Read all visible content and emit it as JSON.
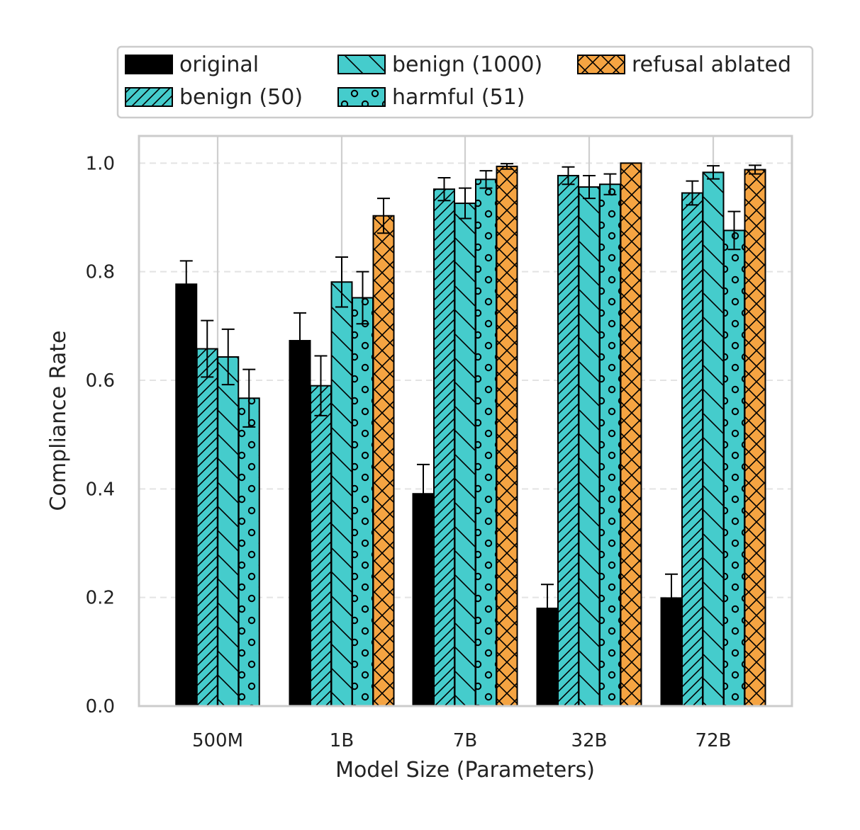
{
  "chart_data": {
    "type": "bar",
    "title": "",
    "xlabel": "Model Size (Parameters)",
    "ylabel": "Compliance Rate",
    "ylim": [
      0.0,
      1.05
    ],
    "yticks": [
      "0.0",
      "0.2",
      "0.4",
      "0.6",
      "0.8",
      "1.0"
    ],
    "ytick_values": [
      0.0,
      0.2,
      0.4,
      0.6,
      0.8,
      1.0
    ],
    "categories": [
      "500M",
      "1B",
      "7B",
      "32B",
      "72B"
    ],
    "grid": true,
    "legend_position": "top",
    "series": [
      {
        "name": "original",
        "pattern": "solid",
        "color": "#000000",
        "values": [
          0.777,
          0.673,
          0.391,
          0.18,
          0.199
        ],
        "errors": [
          0.043,
          0.051,
          0.054,
          0.044,
          0.044
        ]
      },
      {
        "name": "benign (50)",
        "pattern": "diag",
        "color": "#45cccc",
        "values": [
          0.658,
          0.59,
          0.952,
          0.977,
          0.945
        ],
        "errors": [
          0.052,
          0.055,
          0.021,
          0.016,
          0.022
        ]
      },
      {
        "name": "benign (1000)",
        "pattern": "backdiag",
        "color": "#45cccc",
        "values": [
          0.643,
          0.781,
          0.926,
          0.956,
          0.983
        ],
        "errors": [
          0.051,
          0.046,
          0.028,
          0.021,
          0.012
        ]
      },
      {
        "name": "harmful (51)",
        "pattern": "circles",
        "color": "#45cccc",
        "values": [
          0.567,
          0.752,
          0.97,
          0.961,
          0.876
        ],
        "errors": [
          0.053,
          0.048,
          0.016,
          0.019,
          0.035
        ]
      },
      {
        "name": "refusal ablated",
        "pattern": "cross",
        "color": "#f5a442",
        "values": [
          null,
          0.903,
          0.994,
          1.0,
          0.988
        ],
        "errors": [
          null,
          0.032,
          0.005,
          0.0,
          0.008
        ]
      }
    ]
  }
}
